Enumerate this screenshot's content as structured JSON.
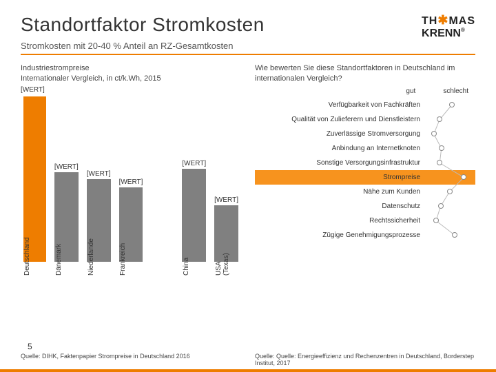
{
  "title": "Standortfaktor Stromkosten",
  "subtitle": "Stromkosten mit 20-40 % Anteil an RZ-Gesamtkosten",
  "logo": {
    "line1": "TH",
    "star": "✱",
    "line1b": "MAS",
    "line2": "KRENN",
    "reg": "®"
  },
  "accent_color": "#ee7d00",
  "text_color": "#333333",
  "left": {
    "heading": "Industriestrompreise\nInternationaler Vergleich, in ct/k.Wh, 2015",
    "axis_label": "[WERT]",
    "bar_color": "#808080",
    "first_bar_color": "#ee7d00",
    "value_label": "[WERT]",
    "bars": [
      {
        "country": "Deutschland",
        "value": 240,
        "show_label": false
      },
      {
        "country": "Dänemark",
        "value": 130
      },
      {
        "country": "Niederlande",
        "value": 120
      },
      {
        "country": "Frankreich",
        "value": 108
      },
      {
        "country": "",
        "value": 0,
        "hide": true
      },
      {
        "country": "China",
        "value": 135
      },
      {
        "country": "USA (Texas)",
        "value": 82
      }
    ],
    "source": "Quelle: DIHK, Faktenpapier Strompreise in Deutschland 2016"
  },
  "right": {
    "heading": "Wie bewerten Sie diese Standortfaktoren in Deutschland im internationalen Vergleich?",
    "scale_left": "gut",
    "scale_right": "schlecht",
    "rows": [
      {
        "label": "Verfügbarkeit von Fachkräften",
        "pos": 0.55
      },
      {
        "label": "Qualität von Zulieferern und Dienstleistern",
        "pos": 0.28
      },
      {
        "label": "Zuverlässige Stromversorgung",
        "pos": 0.15
      },
      {
        "label": "Anbindung an Internetknoten",
        "pos": 0.32
      },
      {
        "label": "Sonstige Versorgungsinfrastruktur",
        "pos": 0.28
      },
      {
        "label": "Strompreise",
        "pos": 0.82,
        "highlight": true
      },
      {
        "label": "Nähe zum Kunden",
        "pos": 0.5
      },
      {
        "label": "Datenschutz",
        "pos": 0.3
      },
      {
        "label": "Rechtssicherheit",
        "pos": 0.2
      },
      {
        "label": "Zügige Genehmigungsprozesse",
        "pos": 0.62
      }
    ],
    "source": "Quelle: Quelle: Energieeffizienz und Rechenzentren in Deutschland, Borderstep Institut, 2017"
  },
  "page_number": "5"
}
